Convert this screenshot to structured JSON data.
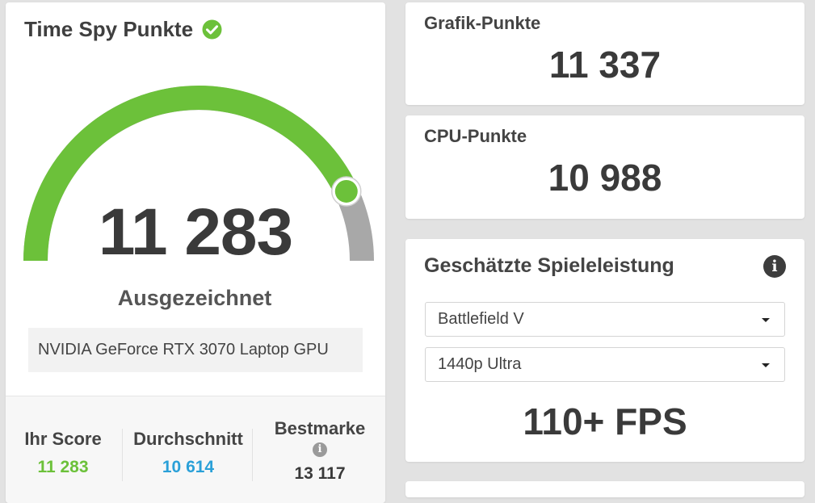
{
  "main_score": {
    "title": "Time Spy Punkte",
    "value": "11 283",
    "rating": "Ausgezeichnet",
    "gpu": "NVIDIA GeForce RTX 3070 Laptop GPU",
    "gauge_fraction": 0.86,
    "colors": {
      "accent": "#6cc13a",
      "track": "#a8a8a8"
    }
  },
  "stats": {
    "your_score_label": "Ihr Score",
    "your_score_value": "11 283",
    "average_label": "Durchschnitt",
    "average_value": "10 614",
    "best_label": "Bestmarke",
    "best_value": "13 117",
    "colors": {
      "your_score": "#6cc13a",
      "average": "#2aa0d8",
      "best": "#3a3a3a"
    }
  },
  "graphics_score": {
    "label": "Grafik-Punkte",
    "value": "11 337"
  },
  "cpu_score": {
    "label": "CPU-Punkte",
    "value": "10 988"
  },
  "game_performance": {
    "title": "Geschätzte Spieleleistung",
    "game_select": "Battlefield V",
    "resolution_select": "1440p Ultra",
    "fps": "110+ FPS"
  }
}
